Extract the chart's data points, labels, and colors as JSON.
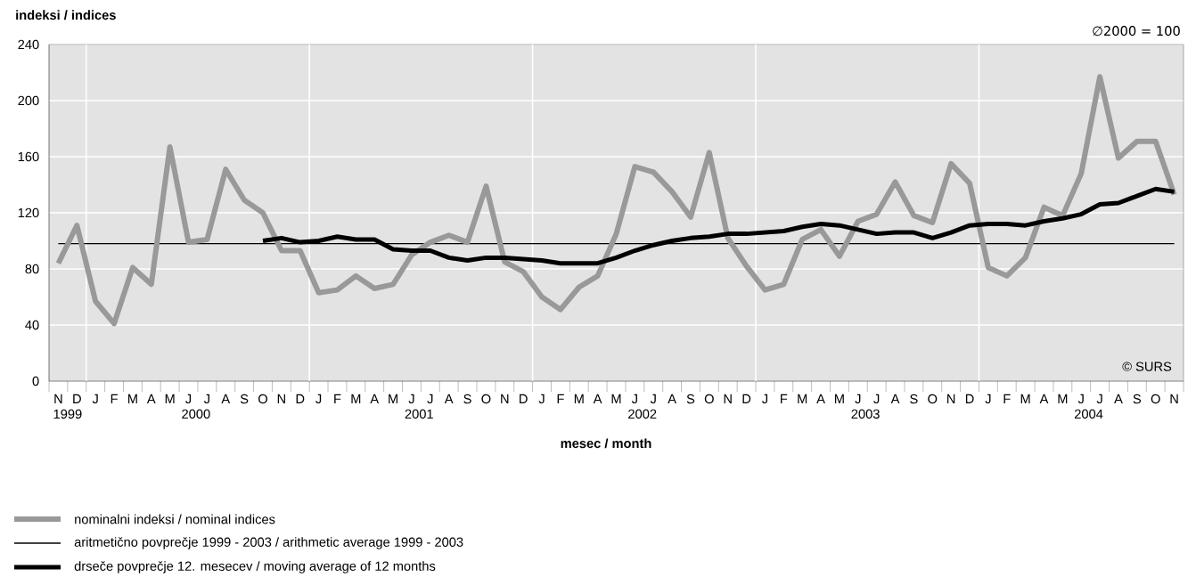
{
  "chart_data": {
    "type": "line",
    "xlabel": "mesec / month",
    "ylabel": "indeksi / indices",
    "categories": [
      "N",
      "D",
      "J",
      "F",
      "M",
      "A",
      "M",
      "J",
      "J",
      "A",
      "S",
      "O",
      "N",
      "D",
      "J",
      "F",
      "M",
      "A",
      "M",
      "J",
      "J",
      "A",
      "S",
      "O",
      "N",
      "D",
      "J",
      "F",
      "M",
      "A",
      "M",
      "J",
      "J",
      "A",
      "S",
      "O",
      "N",
      "D",
      "J",
      "F",
      "M",
      "A",
      "M",
      "J",
      "J",
      "A",
      "S",
      "O",
      "N",
      "D",
      "J",
      "F",
      "M",
      "A",
      "M",
      "J",
      "J",
      "A",
      "S",
      "O",
      "N"
    ],
    "series": [
      {
        "name": "nominalni indeksi / nominal indices",
        "color": "#999999",
        "values": [
          84,
          111,
          57,
          41,
          81,
          69,
          167,
          99,
          101,
          151,
          129,
          120,
          93,
          93,
          63,
          65,
          75,
          66,
          69,
          90,
          99,
          104,
          99,
          139,
          85,
          78,
          60,
          51,
          67,
          75,
          105,
          153,
          149,
          135,
          117,
          163,
          102,
          82,
          65,
          69,
          101,
          108,
          89,
          114,
          119,
          142,
          118,
          113,
          155,
          141,
          81,
          75,
          88,
          124,
          118,
          148,
          217,
          159,
          171,
          171,
          133
        ]
      },
      {
        "name": "drseče povprečje 12. mesecev / moving average of 12 months",
        "color": "#000000",
        "values": [
          null,
          null,
          null,
          null,
          null,
          null,
          null,
          null,
          null,
          null,
          null,
          100,
          102,
          99,
          100,
          103,
          101,
          101,
          94,
          93,
          93,
          88,
          86,
          88,
          88,
          87,
          86,
          84,
          84,
          84,
          88,
          93,
          97,
          100,
          102,
          103,
          105,
          105,
          106,
          107,
          110,
          112,
          111,
          108,
          105,
          106,
          106,
          102,
          106,
          111,
          112,
          112,
          111,
          114,
          116,
          119,
          126,
          127,
          132,
          137,
          135
        ]
      }
    ],
    "ref_lines": [
      {
        "axis": "y",
        "value": 98,
        "label": "aritmetično povprečje 1999 - 2003 / arithmetic average 1999 - 2003",
        "color": "#000000"
      }
    ],
    "ylim": [
      0,
      240
    ],
    "yticks": [
      0,
      40,
      80,
      120,
      160,
      200,
      240
    ],
    "grid": true,
    "legend": "bottom",
    "marker": "none",
    "line_style": "solid",
    "annotations": [
      "1999",
      "2000",
      "2001",
      "2002",
      "2003",
      "2004",
      "∅2000 = 100",
      "© SURS"
    ]
  }
}
